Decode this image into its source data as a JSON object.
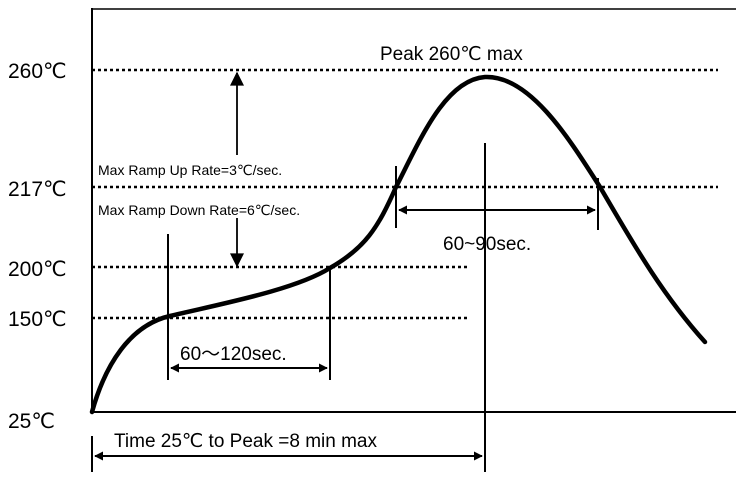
{
  "diagram": {
    "y_ticks": [
      {
        "label": "260℃",
        "value": 260
      },
      {
        "label": "217℃",
        "value": 217
      },
      {
        "label": "200℃",
        "value": 200
      },
      {
        "label": "150℃",
        "value": 150
      },
      {
        "label": "25℃",
        "value": 25
      }
    ],
    "annotations": {
      "peak": "Peak 260℃ max",
      "ramp_up": "Max Ramp Up Rate=3℃/sec.",
      "ramp_down": "Max Ramp Down Rate=6℃/sec.",
      "reflow_time": "60~90sec.",
      "soak_time": "60～120sec.",
      "total_time": "Time 25℃ to Peak =8 min max"
    }
  }
}
